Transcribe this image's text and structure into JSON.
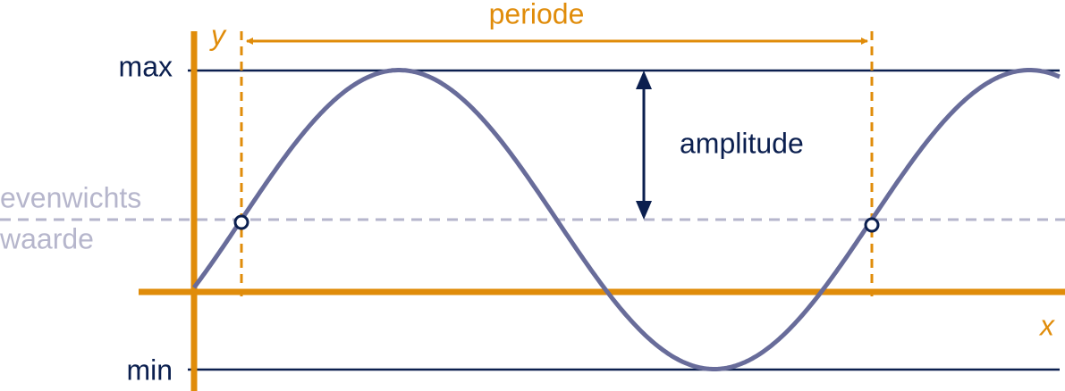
{
  "labels": {
    "period": "periode",
    "y_axis": "y",
    "x_axis": "x",
    "max": "max",
    "min": "min",
    "amplitude": "amplitude",
    "equilibrium_line1": "evenwichts",
    "equilibrium_line2": "waarde"
  }
}
